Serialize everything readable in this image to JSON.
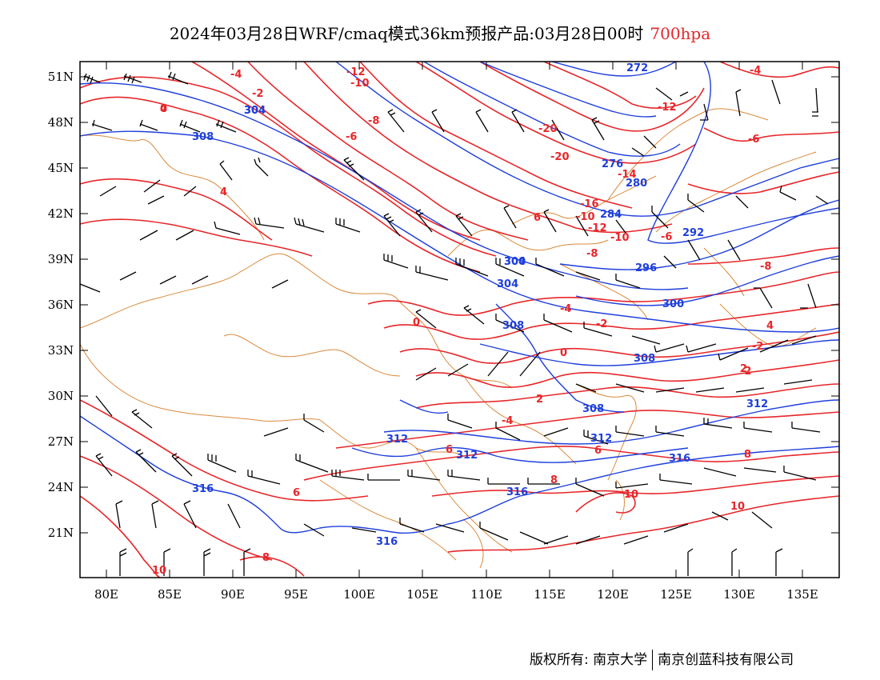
{
  "title": {
    "text": "2024年03月28日WRF/cmaq模式36km预报产品:03月28日00时",
    "level": "700hpa"
  },
  "axes": {
    "y_ticks": [
      "51N",
      "48N",
      "45N",
      "42N",
      "39N",
      "36N",
      "33N",
      "30N",
      "27N",
      "24N",
      "21N"
    ],
    "x_ticks": [
      "80E",
      "85E",
      "90E",
      "95E",
      "100E",
      "105E",
      "110E",
      "115E",
      "120E",
      "125E",
      "130E",
      "135E"
    ]
  },
  "contours": {
    "temperature_color": "#e8262a",
    "height_color": "#1f3fdc",
    "border_color": "#d98a3c",
    "temperature_labels": [
      "-4",
      "-2",
      "0",
      "4",
      "-12",
      "-10",
      "-8",
      "-6",
      "-20",
      "-20",
      "-16",
      "-14",
      "-12",
      "-10",
      "-10",
      "-12",
      "-8",
      "-6",
      "-6",
      "-8",
      "-4",
      "-2",
      "0",
      "-2",
      "0",
      "4",
      "2",
      "2",
      "-4",
      "-2",
      "4",
      "6",
      "6",
      "6",
      "8",
      "8",
      "10",
      "10",
      "10",
      "8",
      "6",
      "-4"
    ],
    "height_labels": [
      "272",
      "276",
      "280",
      "284",
      "292",
      "296",
      "300",
      "304",
      "308",
      "300",
      "304",
      "308",
      "308",
      "312",
      "312",
      "312",
      "312",
      "316",
      "316",
      "316",
      "316",
      "304",
      "304",
      "308"
    ]
  },
  "footer": {
    "left": "版权所有: 南京大学",
    "right": "南京创蓝科技有限公司"
  }
}
